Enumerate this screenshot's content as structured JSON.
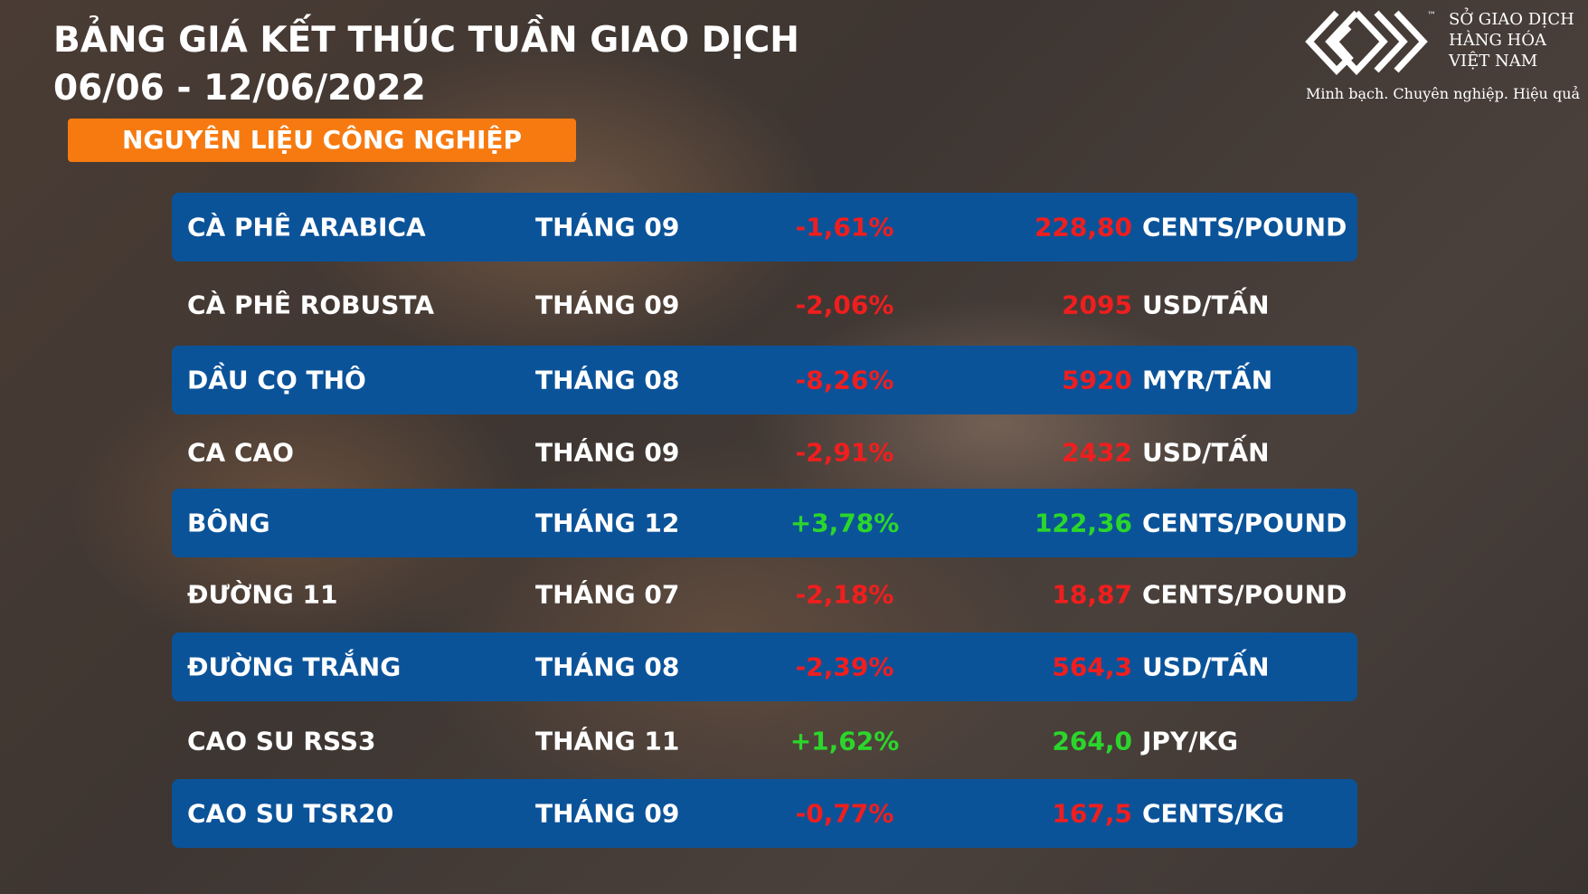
{
  "header": {
    "title": "BẢNG GIÁ KẾT THÚC TUẦN GIAO DỊCH",
    "period": "06/06 - 12/06/2022",
    "section": "NGUYÊN LIỆU CÔNG NGHIỆP"
  },
  "logo": {
    "mark": "™",
    "lines": [
      "SỞ GIAO DỊCH",
      "HÀNG HÓA",
      "VIỆT NAM"
    ],
    "tagline": "Minh bạch. Chuyên nghiệp. Hiệu quả"
  },
  "table": {
    "rows": [
      [
        "CÀ PHÊ ARABICA",
        "THÁNG 09",
        "-1,61%",
        "228,80",
        "CENTS/POUND"
      ],
      [
        "CÀ PHÊ ROBUSTA",
        "THÁNG 09",
        "-2,06%",
        "2095",
        "USD/TẤN"
      ],
      [
        "DẦU CỌ THÔ",
        "THÁNG 08",
        "-8,26%",
        "5920",
        "MYR/TẤN"
      ],
      [
        "CA CAO",
        "THÁNG 09",
        "-2,91%",
        "2432",
        "USD/TẤN"
      ],
      [
        "BÔNG",
        "THÁNG 12",
        "+3,78%",
        "122,36",
        "CENTS/POUND"
      ],
      [
        "ĐƯỜNG 11",
        "THÁNG 07",
        "-2,18%",
        "18,87",
        "CENTS/POUND"
      ],
      [
        "ĐƯỜNG TRẮNG",
        "THÁNG 08",
        "-2,39%",
        "564,3",
        "USD/TẤN"
      ],
      [
        "CAO SU RSS3",
        "THÁNG 11",
        "+1,62%",
        "264,0",
        "JPY/KG"
      ],
      [
        "CAO SU TSR20",
        "THÁNG 09",
        "-0,77%",
        "167,5",
        "CENTS/KG"
      ]
    ]
  }
}
